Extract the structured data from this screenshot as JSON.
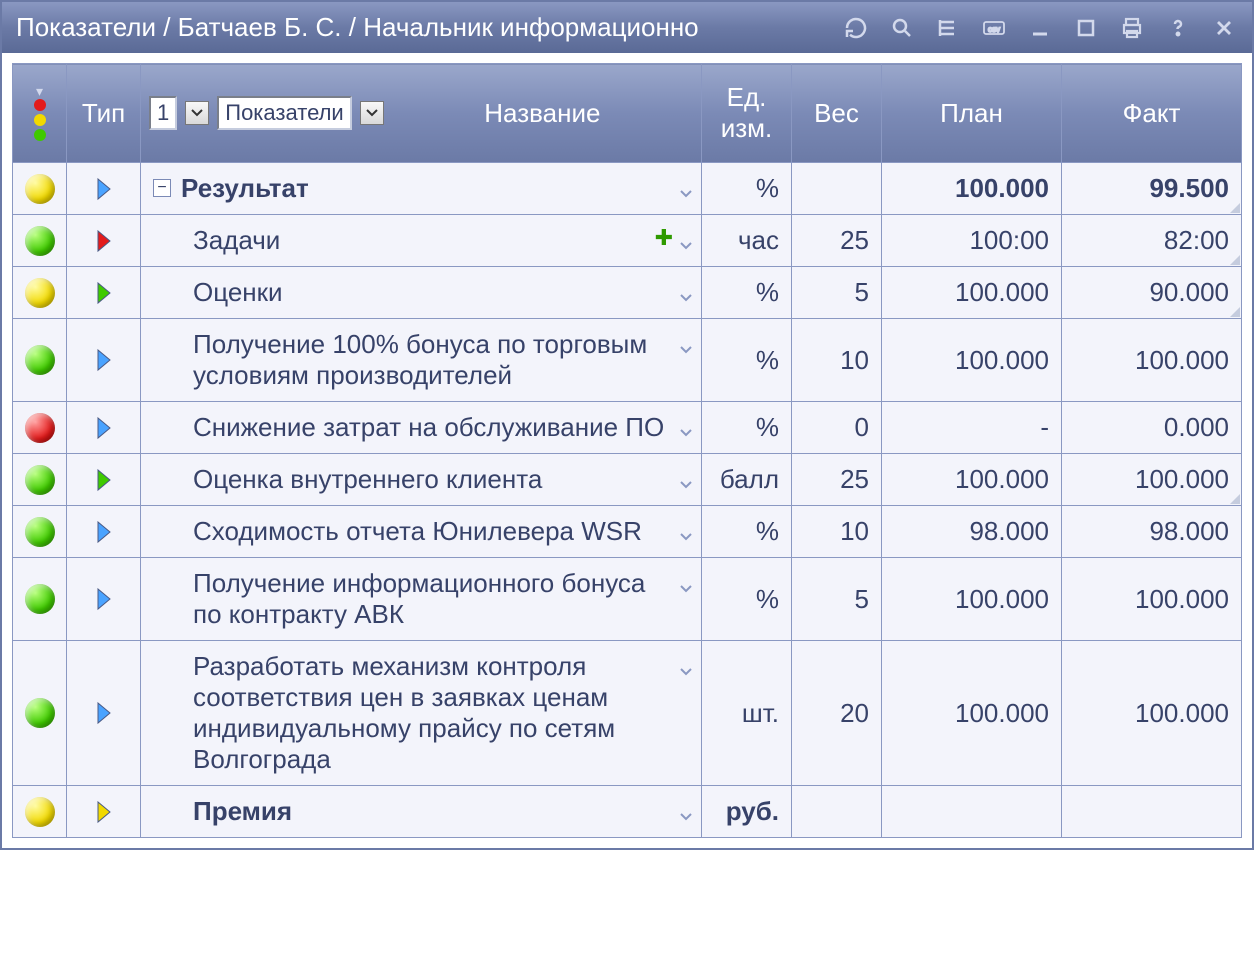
{
  "colors": {
    "header_grad_top": "#8a98c2",
    "header_grad_mid": "#6b7aa6",
    "header_grad_bot": "#5a6a96",
    "row_bg": "#f3f4fb",
    "text": "#374269",
    "border": "#8a98c2",
    "dot_green": "#3fca00",
    "dot_yellow": "#f1d900",
    "dot_red": "#e31b1b"
  },
  "titlebar": {
    "text": "Показатели / Батчаев Б. С. / Начальник информационно"
  },
  "header": {
    "type": "Тип",
    "name": "Название",
    "unit": "Ед. изм.",
    "weight": "Вес",
    "plan": "План",
    "fact": "Факт",
    "level_sel": "1",
    "category_sel": "Показатели"
  },
  "rows": [
    {
      "status": "yellow",
      "type": "blue",
      "indent": 0,
      "toggle": "minus",
      "bold": true,
      "name": "Результат",
      "add": false,
      "unit": "%",
      "weight": "",
      "plan": "100.000",
      "fact": "99.500",
      "plan_bold": true,
      "fact_bold": true,
      "fact_mark": true
    },
    {
      "status": "green",
      "type": "red",
      "indent": 1,
      "toggle": "",
      "bold": false,
      "name": "Задачи",
      "add": true,
      "unit": "час",
      "weight": "25",
      "plan": "100:00",
      "fact": "82:00",
      "plan_bold": false,
      "fact_bold": false,
      "fact_mark": true
    },
    {
      "status": "yellow",
      "type": "green",
      "indent": 1,
      "toggle": "",
      "bold": false,
      "name": "Оценки",
      "add": false,
      "unit": "%",
      "weight": "5",
      "plan": "100.000",
      "fact": "90.000",
      "plan_bold": false,
      "fact_bold": false,
      "fact_mark": true
    },
    {
      "status": "green",
      "type": "blue",
      "indent": 1,
      "toggle": "",
      "bold": false,
      "name": "Получение 100% бонуса по торговым условиям производителей",
      "add": false,
      "unit": "%",
      "weight": "10",
      "plan": "100.000",
      "fact": "100.000",
      "plan_bold": false,
      "fact_bold": false,
      "fact_mark": false
    },
    {
      "status": "red",
      "type": "blue",
      "indent": 1,
      "toggle": "",
      "bold": false,
      "name": "Снижение затрат на обслуживание ПО",
      "add": false,
      "unit": "%",
      "weight": "0",
      "plan": "-",
      "fact": "0.000",
      "plan_bold": false,
      "fact_bold": false,
      "fact_mark": false
    },
    {
      "status": "green",
      "type": "green",
      "indent": 1,
      "toggle": "",
      "bold": false,
      "name": "Оценка внутреннего клиента",
      "add": false,
      "unit": "балл",
      "weight": "25",
      "plan": "100.000",
      "fact": "100.000",
      "plan_bold": false,
      "fact_bold": false,
      "fact_mark": true
    },
    {
      "status": "green",
      "type": "blue",
      "indent": 1,
      "toggle": "",
      "bold": false,
      "name": "Сходимость отчета Юнилевера WSR",
      "add": false,
      "unit": "%",
      "weight": "10",
      "plan": "98.000",
      "fact": "98.000",
      "plan_bold": false,
      "fact_bold": false,
      "fact_mark": false
    },
    {
      "status": "green",
      "type": "blue",
      "indent": 1,
      "toggle": "",
      "bold": false,
      "name": "Получение информационного бонуса по контракту АВК",
      "add": false,
      "unit": "%",
      "weight": "5",
      "plan": "100.000",
      "fact": "100.000",
      "plan_bold": false,
      "fact_bold": false,
      "fact_mark": false
    },
    {
      "status": "green",
      "type": "blue",
      "indent": 1,
      "toggle": "",
      "bold": false,
      "name": "Разработать механизм контроля соответствия цен в заявках ценам индивидуальному прайсу по сетям Волгограда",
      "add": false,
      "unit": "шт.",
      "weight": "20",
      "plan": "100.000",
      "fact": "100.000",
      "plan_bold": false,
      "fact_bold": false,
      "fact_mark": false
    },
    {
      "status": "yellow",
      "type": "yellow",
      "indent": 1,
      "toggle": "",
      "bold": true,
      "name": "Премия",
      "add": false,
      "unit": "руб.",
      "weight": "",
      "plan": "",
      "fact": "",
      "plan_bold": false,
      "fact_bold": false,
      "fact_mark": false,
      "unit_bold": true
    }
  ]
}
